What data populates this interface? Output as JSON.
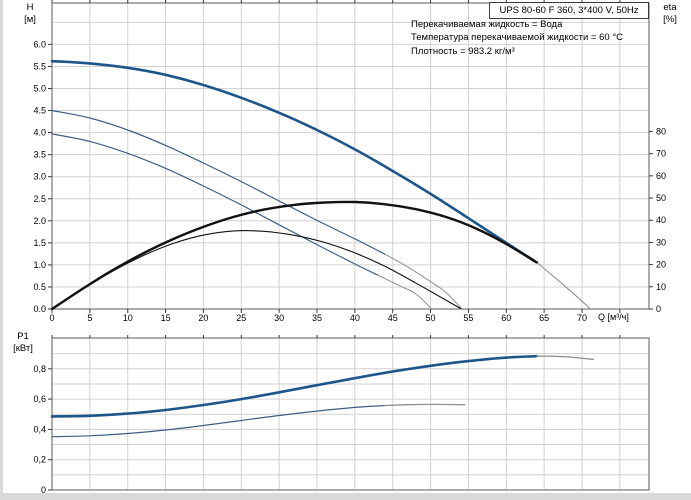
{
  "header": {
    "title": "UPS 80-60 F 360, 3*400 V, 50Hz",
    "info_lines": [
      "Перекачиваемая жидкость = Вода",
      "Температура перекачиваемой жидкости = 60 °C",
      "Плотность = 983.2 кг/м³"
    ]
  },
  "colors": {
    "curve_main": "#1c568a",
    "curve_thin": "#3f5e86",
    "curve_eta": "#121212",
    "curve_ext": "#8f8f8f",
    "grid": "#d2d2d2",
    "frame": "#767676",
    "tick": "#3a3a3a",
    "text": "#000000"
  },
  "chart_data": [
    {
      "id": "top",
      "type": "line",
      "xlabel": "Q [м³/ч]",
      "left_axis": {
        "name": "H",
        "unit": "[м]"
      },
      "right_axis": {
        "name": "eta",
        "unit": "[%]"
      },
      "xlim": [
        0,
        78.9
      ],
      "ylim_left": [
        0,
        6.94
      ],
      "ylim_right": [
        0,
        80
      ],
      "grid_on": true,
      "x_ticks": {
        "values": [
          0,
          5,
          10,
          15,
          20,
          25,
          30,
          35,
          40,
          45,
          50,
          55,
          60,
          65,
          70
        ],
        "labels": [
          "0",
          "5",
          "10",
          "15",
          "20",
          "25",
          "30",
          "35",
          "40",
          "45",
          "50",
          "55",
          "60",
          "65",
          "70"
        ]
      },
      "left_ticks": {
        "values": [
          0,
          0.5,
          1,
          1.5,
          2,
          2.5,
          3,
          3.5,
          4,
          4.5,
          5,
          5.5,
          6
        ],
        "labels": [
          "0.0",
          "0.5",
          "1.0",
          "1.5",
          "2.0",
          "2.5",
          "3.0",
          "3.5",
          "4.0",
          "4.5",
          "5.0",
          "5.5",
          "6.0"
        ]
      },
      "right_ticks": {
        "values": [
          0,
          10,
          20,
          30,
          40,
          50,
          60,
          70,
          80
        ],
        "labels": [
          "0",
          "10",
          "20",
          "30",
          "40",
          "50",
          "60",
          "70",
          "80"
        ]
      },
      "grid": {
        "x": [
          5,
          10,
          15,
          20,
          25,
          30,
          35,
          40,
          45,
          50,
          55,
          60,
          65,
          70,
          75
        ],
        "y_left": [
          0.5,
          1,
          1.5,
          2,
          2.5,
          3,
          3.5,
          4,
          4.5,
          5,
          5.5,
          6,
          6.5
        ]
      },
      "series": [
        {
          "name": "H-curve-speed3",
          "axis": "left",
          "style": "main",
          "width": 2.6,
          "points": [
            [
              0,
              5.62
            ],
            [
              5,
              5.57
            ],
            [
              10,
              5.47
            ],
            [
              15,
              5.31
            ],
            [
              20,
              5.08
            ],
            [
              25,
              4.79
            ],
            [
              30,
              4.45
            ],
            [
              35,
              4.06
            ],
            [
              40,
              3.62
            ],
            [
              45,
              3.13
            ],
            [
              50,
              2.61
            ],
            [
              55,
              2.06
            ],
            [
              60,
              1.5
            ],
            [
              64,
              1.06
            ]
          ]
        },
        {
          "name": "H-curve-speed3-extension",
          "axis": "left",
          "style": "ext",
          "width": 1.1,
          "points": [
            [
              64,
              1.06
            ],
            [
              66.5,
              0.7
            ],
            [
              69,
              0.33
            ],
            [
              71,
              0.02
            ]
          ]
        },
        {
          "name": "H-curve-speed2",
          "axis": "left",
          "style": "thin",
          "width": 1.2,
          "points": [
            [
              0,
              4.5
            ],
            [
              5,
              4.33
            ],
            [
              10,
              4.06
            ],
            [
              15,
              3.71
            ],
            [
              20,
              3.31
            ],
            [
              25,
              2.89
            ],
            [
              30,
              2.45
            ],
            [
              35,
              2.01
            ],
            [
              40,
              1.59
            ],
            [
              44,
              1.24
            ]
          ]
        },
        {
          "name": "H-curve-speed2-extension",
          "axis": "left",
          "style": "ext",
          "width": 1,
          "points": [
            [
              44,
              1.24
            ],
            [
              47,
              0.95
            ],
            [
              50,
              0.62
            ],
            [
              52,
              0.38
            ],
            [
              54,
              0.03
            ]
          ]
        },
        {
          "name": "H-curve-speed1",
          "axis": "left",
          "style": "thin",
          "width": 1.2,
          "points": [
            [
              0,
              3.97
            ],
            [
              5,
              3.8
            ],
            [
              10,
              3.53
            ],
            [
              15,
              3.19
            ],
            [
              20,
              2.79
            ],
            [
              25,
              2.36
            ],
            [
              30,
              1.91
            ],
            [
              35,
              1.46
            ],
            [
              40,
              1.02
            ],
            [
              43,
              0.77
            ]
          ]
        },
        {
          "name": "H-curve-speed1-extension",
          "axis": "left",
          "style": "ext",
          "width": 1,
          "points": [
            [
              43,
              0.77
            ],
            [
              46,
              0.52
            ],
            [
              48,
              0.35
            ],
            [
              50,
              0.03
            ]
          ]
        },
        {
          "name": "eta-curve-speed3",
          "axis": "right",
          "style": "eta",
          "width": 2.4,
          "points": [
            [
              0,
              0
            ],
            [
              4,
              9
            ],
            [
              8,
              17.5
            ],
            [
              12,
              25
            ],
            [
              16,
              31.5
            ],
            [
              20,
              37
            ],
            [
              24,
              41.5
            ],
            [
              28,
              44.8
            ],
            [
              32,
              46.9
            ],
            [
              36,
              48
            ],
            [
              40,
              48.2
            ],
            [
              44,
              47.2
            ],
            [
              48,
              45
            ],
            [
              52,
              41.5
            ],
            [
              56,
              36.3
            ],
            [
              60,
              29.3
            ],
            [
              64,
              21
            ]
          ]
        },
        {
          "name": "eta-curve-low",
          "axis": "right",
          "style": "eta",
          "width": 1.1,
          "points": [
            [
              0,
              0
            ],
            [
              4,
              9
            ],
            [
              8,
              17
            ],
            [
              12,
              24
            ],
            [
              16,
              29.5
            ],
            [
              20,
              33.3
            ],
            [
              24,
              35.2
            ],
            [
              28,
              35
            ],
            [
              32,
              33.2
            ],
            [
              36,
              30
            ],
            [
              40,
              25.3
            ],
            [
              44,
              19.2
            ],
            [
              48,
              11.8
            ],
            [
              51,
              6
            ],
            [
              54,
              0.2
            ]
          ]
        }
      ]
    },
    {
      "id": "bottom",
      "type": "line",
      "xlabel": "",
      "left_axis": {
        "name": "P1",
        "unit": "[кВт]"
      },
      "xlim": [
        0,
        78.9
      ],
      "ylim_left": [
        0,
        1.0
      ],
      "grid_on": true,
      "x_ticks": {
        "values": [
          0,
          5,
          10,
          15,
          20,
          25,
          30,
          35,
          40,
          45,
          50,
          55,
          60,
          65,
          70
        ],
        "labels": []
      },
      "left_ticks": {
        "values": [
          0,
          0.2,
          0.4,
          0.6,
          0.8
        ],
        "labels": [
          "0",
          "0,2",
          "0,4",
          "0,6",
          "0,8"
        ]
      },
      "grid": {
        "x": [
          5,
          10,
          15,
          20,
          25,
          30,
          35,
          40,
          45,
          50,
          55,
          60,
          65,
          70,
          75
        ],
        "y_left": [
          0.1,
          0.2,
          0.3,
          0.4,
          0.5,
          0.6,
          0.7,
          0.8,
          0.9
        ]
      },
      "series": [
        {
          "name": "P1-curve-speed3",
          "axis": "left",
          "style": "main",
          "width": 2.6,
          "points": [
            [
              0,
              0.486
            ],
            [
              5,
              0.49
            ],
            [
              10,
              0.504
            ],
            [
              15,
              0.528
            ],
            [
              20,
              0.561
            ],
            [
              25,
              0.6
            ],
            [
              30,
              0.645
            ],
            [
              35,
              0.692
            ],
            [
              40,
              0.738
            ],
            [
              45,
              0.782
            ],
            [
              50,
              0.82
            ],
            [
              55,
              0.851
            ],
            [
              58,
              0.866
            ],
            [
              61,
              0.877
            ],
            [
              64,
              0.883
            ]
          ]
        },
        {
          "name": "P1-curve-speed3-extension",
          "axis": "left",
          "style": "ext",
          "width": 1.3,
          "points": [
            [
              64,
              0.883
            ],
            [
              66,
              0.883
            ],
            [
              68.5,
              0.877
            ],
            [
              71.5,
              0.862
            ]
          ]
        },
        {
          "name": "P1-curve-low",
          "axis": "left",
          "style": "thin",
          "width": 1.2,
          "points": [
            [
              0,
              0.352
            ],
            [
              5,
              0.358
            ],
            [
              10,
              0.373
            ],
            [
              15,
              0.396
            ],
            [
              20,
              0.426
            ],
            [
              25,
              0.459
            ],
            [
              30,
              0.492
            ],
            [
              35,
              0.521
            ],
            [
              40,
              0.545
            ],
            [
              44,
              0.558
            ]
          ]
        },
        {
          "name": "P1-curve-low-extension",
          "axis": "left",
          "style": "ext",
          "width": 1.3,
          "points": [
            [
              44,
              0.558
            ],
            [
              47,
              0.563
            ],
            [
              50,
              0.565
            ],
            [
              54.5,
              0.563
            ]
          ]
        }
      ]
    }
  ]
}
